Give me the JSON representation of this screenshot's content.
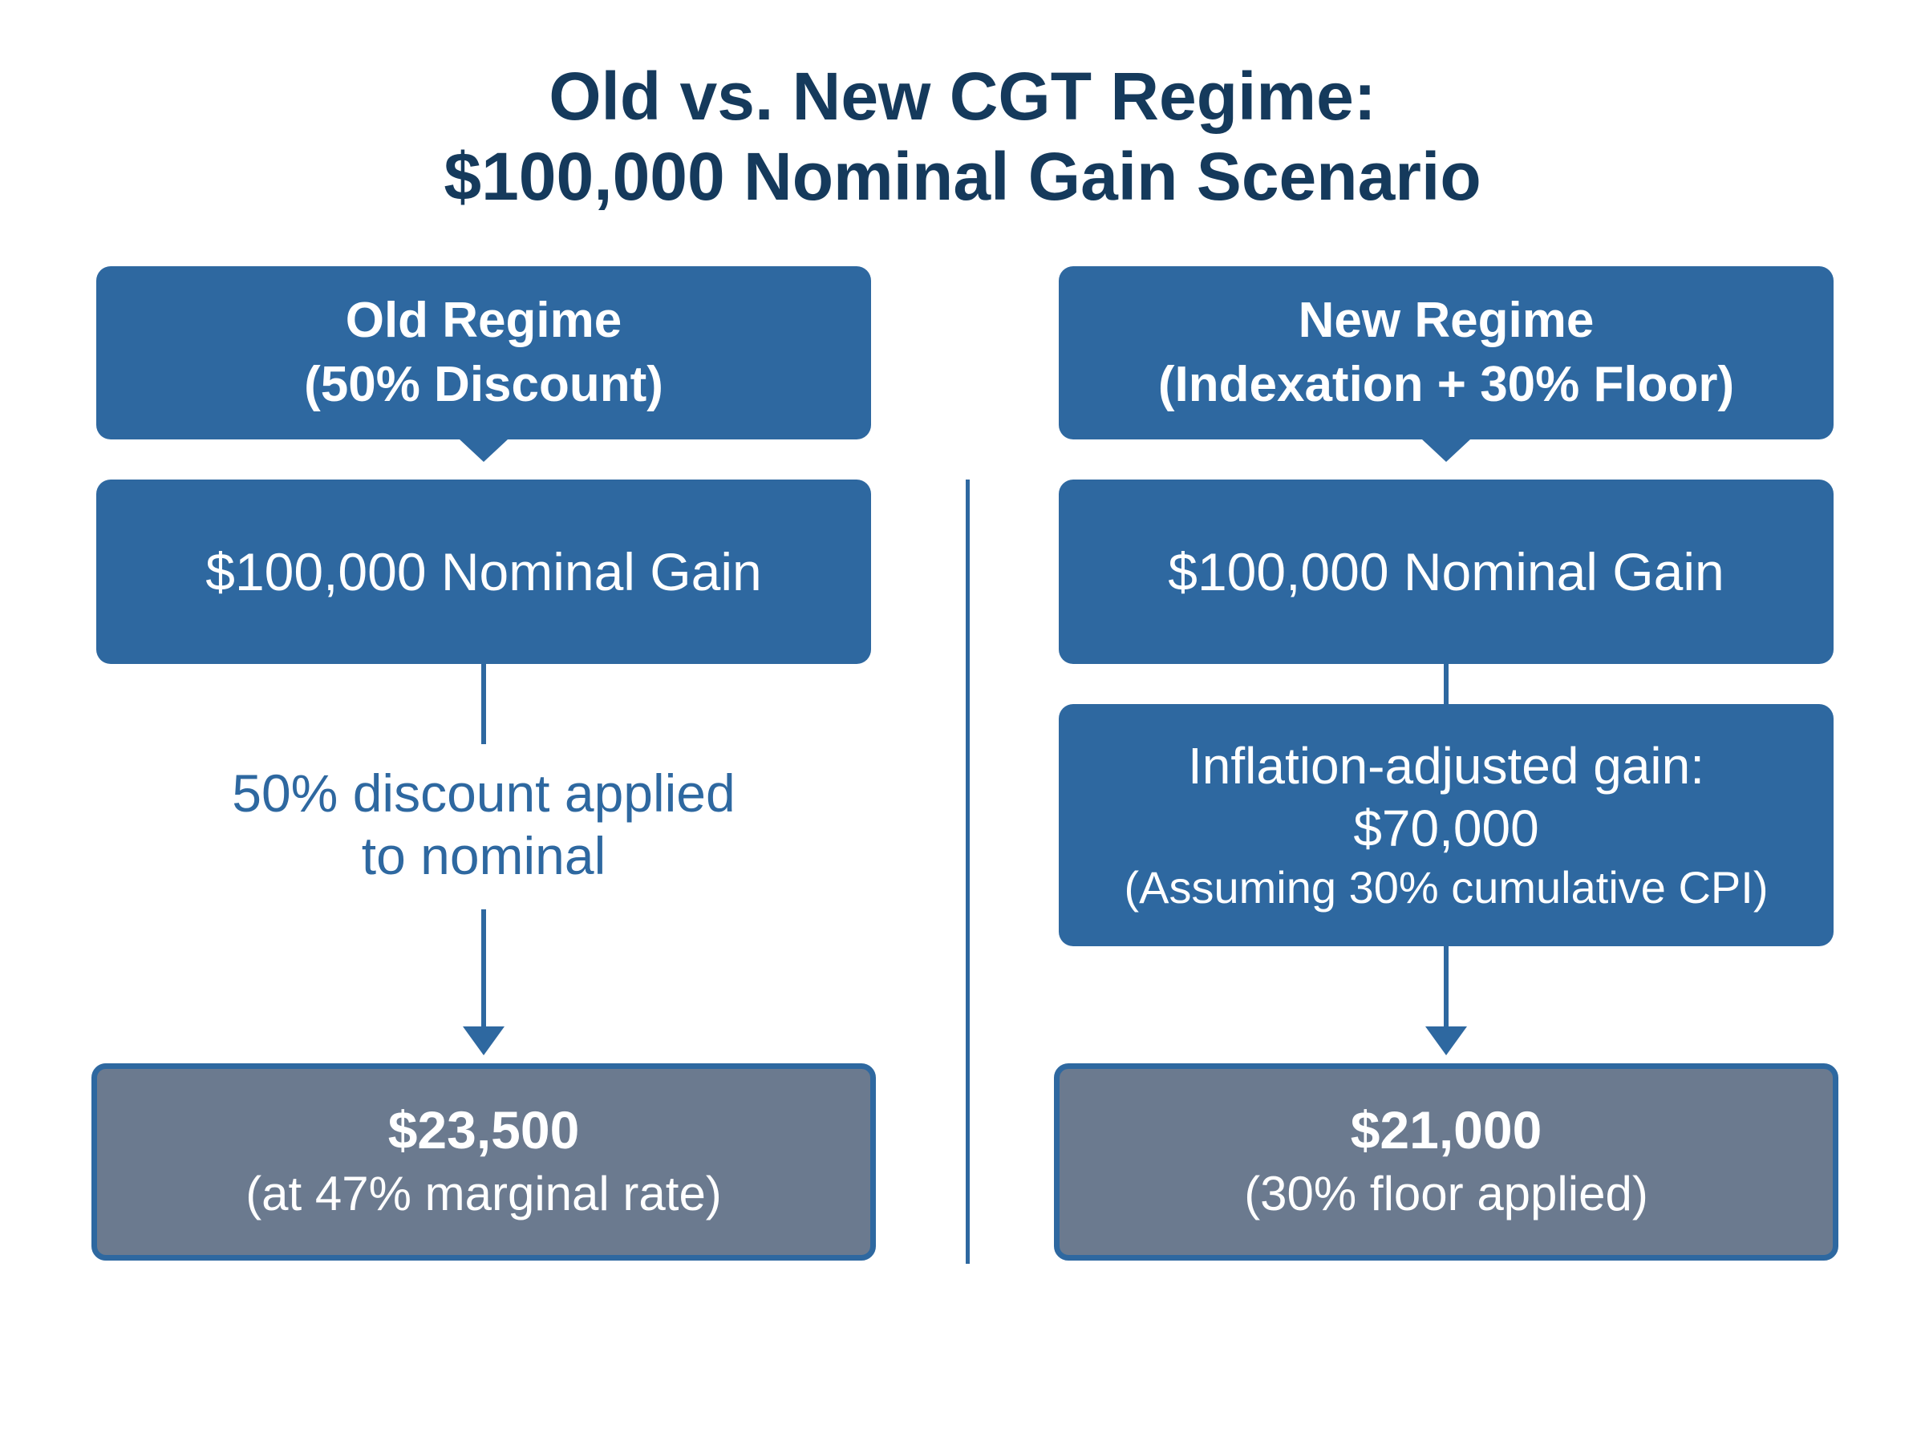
{
  "title": {
    "line1": "Old vs. New CGT Regime:",
    "line2": "$100,000 Nominal Gain Scenario"
  },
  "old_regime": {
    "header_line1": "Old Regime",
    "header_line2": "(50% Discount)",
    "gain": "$100,000 Nominal Gain",
    "step_line1": "50% discount applied",
    "step_line2": "to nominal",
    "result_amount": "$23,500",
    "result_note": "(at 47% marginal rate)"
  },
  "new_regime": {
    "header_line1": "New Regime",
    "header_line2": "(Indexation + 30% Floor)",
    "gain": "$100,000 Nominal Gain",
    "adjusted_line1": "Inflation-adjusted gain:",
    "adjusted_line2": "$70,000",
    "adjusted_note": "(Assuming 30% cumulative CPI)",
    "result_amount": "$21,000",
    "result_note": "(30% floor applied)"
  },
  "colors": {
    "box_blue": "#2e68a0",
    "result_gray": "#6b7a8f",
    "title_navy": "#153a5c"
  }
}
